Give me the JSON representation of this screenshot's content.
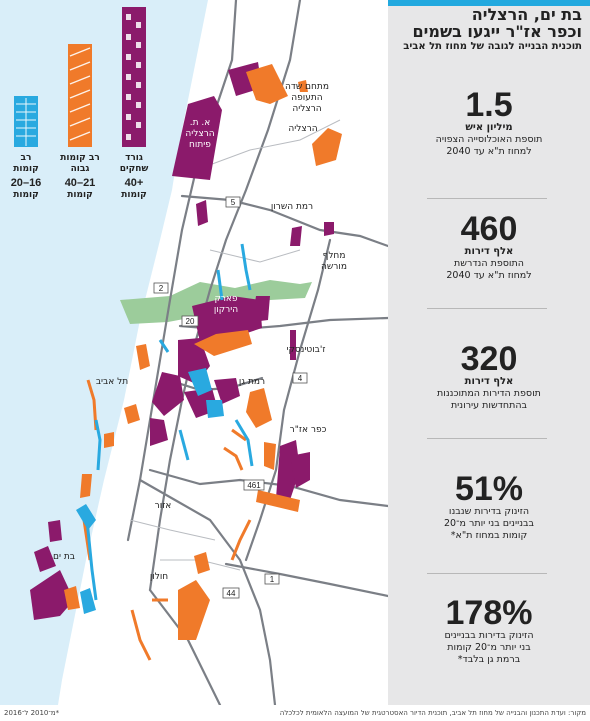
{
  "panel": {
    "title": "בת ים, הרצליה\nוכפר אז\"ר ייגעו בשמים",
    "subtitle": "תוכנית הבנייה לגובה של מחוז תל אביב",
    "stats": [
      {
        "num": "1.5",
        "unit": "מיליון איש",
        "desc": "תוספת האוכלוסייה הצפויה\nלמחוז ת\"א עד 2040"
      },
      {
        "num": "460",
        "unit": "אלף דירות",
        "desc": "התוספת הנדרשת\nלמחוז ת\"א עד 2040"
      },
      {
        "num": "320",
        "unit": "אלף דירות",
        "desc": "תוספת הדירות המתוכננות\nבהתחדשות עירונית"
      },
      {
        "num": "51%",
        "unit": "",
        "desc": "הזינוק בדירות שנבנו\nבבניינים בני יותר מ־20\nקומות במחוז ת\"א*"
      },
      {
        "num": "178%",
        "unit": "",
        "desc": "הזינוק בדירות בבניינים\nבני יותר מ־20 קומות\nברמת גן בלבד*"
      }
    ]
  },
  "legend": [
    {
      "line1": "גורד",
      "line2": "שחקים",
      "range": "+40",
      "floors": "קומות",
      "color": "#8b1a6b"
    },
    {
      "line1": "רב קומות",
      "line2": "גבוה",
      "range": "21–40",
      "floors": "קומות",
      "color": "#f07a2a"
    },
    {
      "line1": "רב",
      "line2": "קומות",
      "range": "16–20",
      "floors": "קומות",
      "color": "#29a9e0"
    }
  ],
  "places": {
    "airfield": "מתחם שדה\nהתעופה\nהרצליה",
    "herzliya": "הרצליה",
    "herzliya_pituach": "א. ת.\nהרצליה\nפיתוח",
    "ramat_hasharon": "רמת השרון",
    "morasha": "מחלף\nמורשה",
    "park": "פארק\nהירקון",
    "jabotinsky": "ז'בוטינסקי",
    "tel_aviv": "תל אביב",
    "ramat_gan": "רמת גן",
    "kfar_azar": "כפר אז\"ר",
    "azor": "אזור",
    "holon": "חולון",
    "bat_yam": "בת ים"
  },
  "roads": [
    "5",
    "2",
    "20",
    "4",
    "461",
    "1",
    "44"
  ],
  "footer": {
    "source": "מקור: ועדת התכנון והבנייה של מחוז תל אביב, תוכנית הדיור האסטרטגית של המועצה הלאומית לכלכלה",
    "credit": "*מ־2010 ל־2016"
  },
  "colors": {
    "skyscraper": "#8b1a6b",
    "high_rise": "#f07a2a",
    "multi_story": "#29a9e0",
    "sea": "#d9eef9",
    "park": "#9ccc9b",
    "accent": "#22a9df"
  }
}
